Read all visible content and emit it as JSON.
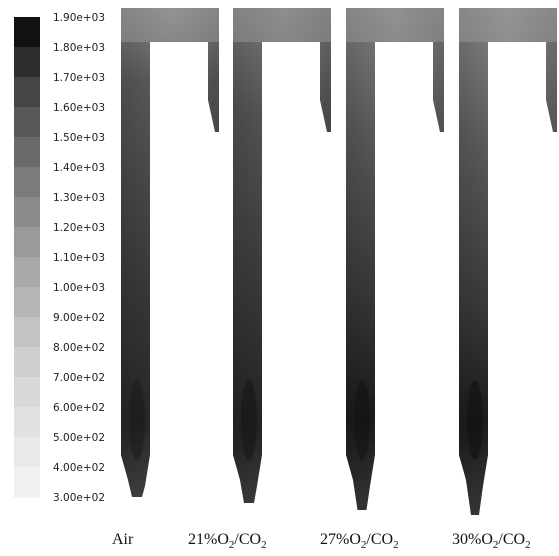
{
  "legend": {
    "ticks": [
      "1.90e+03",
      "1.80e+03",
      "1.70e+03",
      "1.60e+03",
      "1.50e+03",
      "1.40e+03",
      "1.30e+03",
      "1.20e+03",
      "1.10e+03",
      "1.00e+03",
      "9.00e+02",
      "8.00e+02",
      "7.00e+02",
      "6.00e+02",
      "5.00e+02",
      "4.00e+02",
      "3.00e+02"
    ],
    "colors": [
      "#111111",
      "#2e2e2e",
      "#454545",
      "#585858",
      "#6a6a6a",
      "#7b7b7b",
      "#8b8b8b",
      "#9a9a9a",
      "#a9a9a9",
      "#b6b6b6",
      "#c3c3c3",
      "#cecece",
      "#d8d8d8",
      "#e1e1e1",
      "#e9e9e9",
      "#f0f0f0"
    ]
  },
  "panels": [
    {
      "label": "Air",
      "main": "Air",
      "sub": "",
      "tail": ""
    },
    {
      "label": "21%O2/CO2",
      "main": "21%O",
      "sub": "2",
      "tail": "/CO",
      "sub2": "2"
    },
    {
      "label": "27%O2/CO2",
      "main": "27%O",
      "sub": "2",
      "tail": "/CO",
      "sub2": "2"
    },
    {
      "label": "30%O2/CO2",
      "main": "30%O",
      "sub": "2",
      "tail": "/CO",
      "sub2": "2"
    }
  ]
}
